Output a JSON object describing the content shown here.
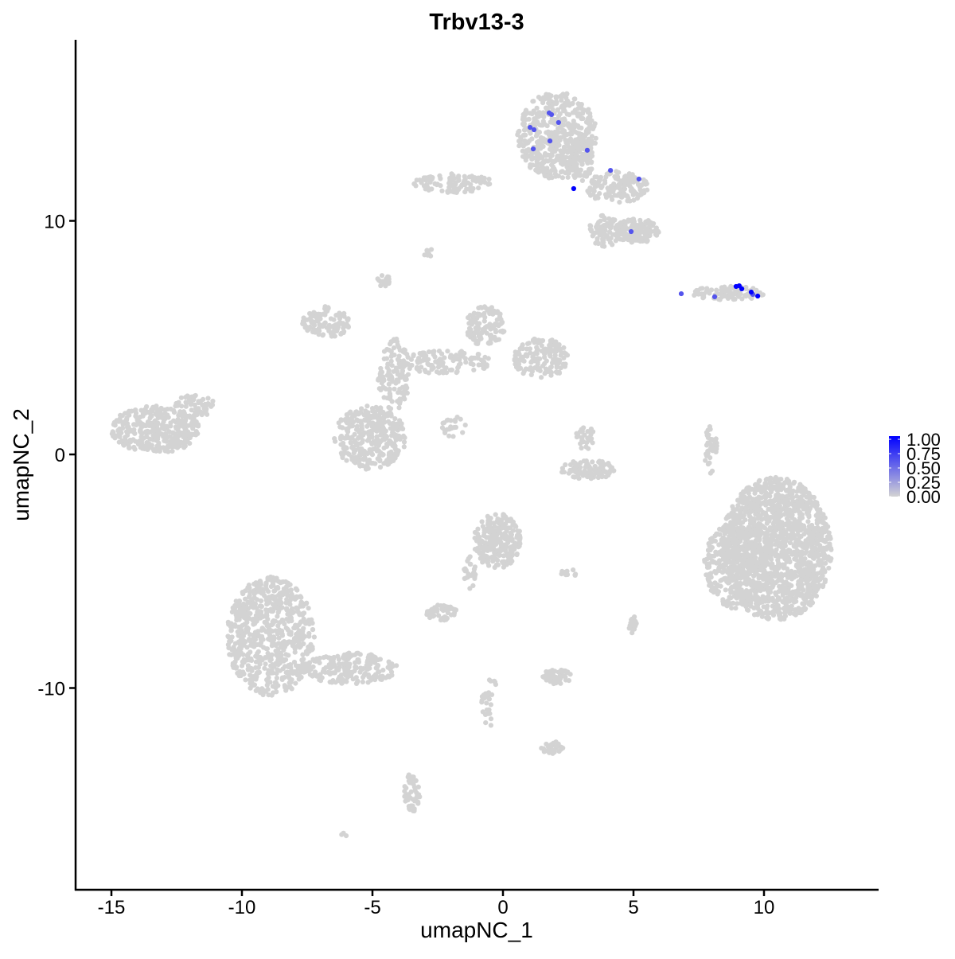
{
  "chart_data": {
    "type": "scatter",
    "title": "Trbv13-3",
    "xlabel": "umapNC_1",
    "ylabel": "umapNC_2",
    "xlim": [
      -16.4,
      14.4
    ],
    "ylim": [
      -18.6,
      17.8
    ],
    "x_ticks": [
      -15,
      -10,
      -5,
      0,
      5,
      10
    ],
    "x_tick_labels": [
      "-15",
      "-10",
      "-5",
      "0",
      "5",
      "10"
    ],
    "y_ticks": [
      -10,
      0,
      10
    ],
    "y_tick_labels": [
      "-10",
      "0",
      "10"
    ],
    "grid": false,
    "color_scale": {
      "low": "#D3D3D3",
      "high": "#0000FF",
      "range": [
        0,
        1
      ],
      "legend_position": "right",
      "legend_labels": [
        "1.00",
        "0.75",
        "0.50",
        "0.25",
        "0.00"
      ],
      "legend_values": [
        1,
        0.75,
        0.5,
        0.25,
        0
      ]
    },
    "expressing_points": [
      {
        "x": 1.77,
        "y": 14.62,
        "value": 0.6
      },
      {
        "x": 1.86,
        "y": 14.55,
        "value": 0.6
      },
      {
        "x": 2.13,
        "y": 14.21,
        "value": 0.6
      },
      {
        "x": 1.04,
        "y": 14.0,
        "value": 0.6
      },
      {
        "x": 1.19,
        "y": 13.9,
        "value": 0.6
      },
      {
        "x": 1.8,
        "y": 13.42,
        "value": 0.6
      },
      {
        "x": 1.16,
        "y": 13.08,
        "value": 0.6
      },
      {
        "x": 3.23,
        "y": 13.02,
        "value": 0.6
      },
      {
        "x": 4.12,
        "y": 12.16,
        "value": 0.6
      },
      {
        "x": 5.21,
        "y": 11.79,
        "value": 0.6
      },
      {
        "x": 4.91,
        "y": 9.54,
        "value": 0.6
      },
      {
        "x": 6.83,
        "y": 6.88,
        "value": 0.6
      },
      {
        "x": 8.11,
        "y": 6.75,
        "value": 0.6
      },
      {
        "x": 9.57,
        "y": 6.85,
        "value": 0.6
      },
      {
        "x": 2.71,
        "y": 11.38,
        "value": 1.0
      },
      {
        "x": 8.93,
        "y": 7.19,
        "value": 1.0
      },
      {
        "x": 9.05,
        "y": 7.22,
        "value": 1.0
      },
      {
        "x": 9.15,
        "y": 7.09,
        "value": 1.0
      },
      {
        "x": 9.51,
        "y": 6.95,
        "value": 1.0
      },
      {
        "x": 9.76,
        "y": 6.78,
        "value": 1.0
      }
    ],
    "zero_value_clusters": [
      {
        "cx": 2.07,
        "cy": 13.66,
        "sx": 1.52,
        "sy": 1.87,
        "n": 500
      },
      {
        "cx": 4.36,
        "cy": 11.45,
        "sx": 1.22,
        "sy": 0.68,
        "n": 150
      },
      {
        "cx": 5.12,
        "cy": 9.57,
        "sx": 0.91,
        "sy": 0.51,
        "n": 150
      },
      {
        "cx": 3.9,
        "cy": 9.57,
        "sx": 0.61,
        "sy": 0.68,
        "n": 80
      },
      {
        "cx": 2.99,
        "cy": 12.64,
        "sx": 0.46,
        "sy": 1.02,
        "n": 100
      },
      {
        "cx": -1.89,
        "cy": 11.62,
        "sx": 1.52,
        "sy": 0.41,
        "n": 100
      },
      {
        "cx": -2.87,
        "cy": 8.65,
        "sx": 0.18,
        "sy": 0.2,
        "n": 8
      },
      {
        "cx": -4.57,
        "cy": 7.46,
        "sx": 0.24,
        "sy": 0.27,
        "n": 15
      },
      {
        "cx": 8.6,
        "cy": 6.9,
        "sx": 1.4,
        "sy": 0.3,
        "n": 90
      },
      {
        "cx": -6.77,
        "cy": 5.66,
        "sx": 0.91,
        "sy": 0.68,
        "n": 120
      },
      {
        "cx": -0.67,
        "cy": 5.49,
        "sx": 0.76,
        "sy": 0.85,
        "n": 120
      },
      {
        "cx": 1.46,
        "cy": 4.12,
        "sx": 1.07,
        "sy": 0.85,
        "n": 150
      },
      {
        "cx": -2.2,
        "cy": 3.95,
        "sx": 1.8,
        "sy": 0.5,
        "n": 120
      },
      {
        "cx": -4.18,
        "cy": 3.44,
        "sx": 0.61,
        "sy": 1.53,
        "n": 120
      },
      {
        "cx": -5.09,
        "cy": 0.72,
        "sx": 1.37,
        "sy": 1.36,
        "n": 350
      },
      {
        "cx": -13.32,
        "cy": 1.06,
        "sx": 1.68,
        "sy": 1.02,
        "n": 350
      },
      {
        "cx": -11.8,
        "cy": 2.08,
        "sx": 0.76,
        "sy": 0.51,
        "n": 60
      },
      {
        "cx": -1.89,
        "cy": 1.23,
        "sx": 0.46,
        "sy": 0.5,
        "n": 25
      },
      {
        "cx": 3.29,
        "cy": -0.65,
        "sx": 1.07,
        "sy": 0.41,
        "n": 100
      },
      {
        "cx": 3.14,
        "cy": 0.72,
        "sx": 0.37,
        "sy": 0.51,
        "n": 30
      },
      {
        "cx": 7.96,
        "cy": 0.2,
        "sx": 0.24,
        "sy": 1.02,
        "n": 40
      },
      {
        "cx": 10.46,
        "cy": -4.05,
        "sx": 2.13,
        "sy": 3.07,
        "n": 1500
      },
      {
        "cx": 8.93,
        "cy": -4.74,
        "sx": 1.22,
        "sy": 1.87,
        "n": 300
      },
      {
        "cx": -0.21,
        "cy": -3.71,
        "sx": 0.91,
        "sy": 1.19,
        "n": 250
      },
      {
        "cx": -2.35,
        "cy": -6.78,
        "sx": 0.61,
        "sy": 0.34,
        "n": 50
      },
      {
        "cx": -1.28,
        "cy": -5.08,
        "sx": 0.24,
        "sy": 0.85,
        "n": 25
      },
      {
        "cx": -8.9,
        "cy": -7.8,
        "sx": 1.68,
        "sy": 2.56,
        "n": 700
      },
      {
        "cx": -5.85,
        "cy": -9.17,
        "sx": 1.83,
        "sy": 0.68,
        "n": 200
      },
      {
        "cx": 2.07,
        "cy": -9.51,
        "sx": 0.55,
        "sy": 0.34,
        "n": 60
      },
      {
        "cx": -3.48,
        "cy": -14.45,
        "sx": 0.3,
        "sy": 0.85,
        "n": 50
      },
      {
        "cx": -0.52,
        "cy": -10.53,
        "sx": 0.3,
        "sy": 1.19,
        "n": 30
      },
      {
        "cx": 1.92,
        "cy": -12.57,
        "sx": 0.46,
        "sy": 0.27,
        "n": 25
      },
      {
        "cx": 4.97,
        "cy": -7.29,
        "sx": 0.15,
        "sy": 0.41,
        "n": 20
      },
      {
        "cx": 2.53,
        "cy": -5.08,
        "sx": 0.37,
        "sy": 0.17,
        "n": 10
      },
      {
        "cx": -6.1,
        "cy": -16.3,
        "sx": 0.1,
        "sy": 0.1,
        "n": 3
      }
    ]
  }
}
